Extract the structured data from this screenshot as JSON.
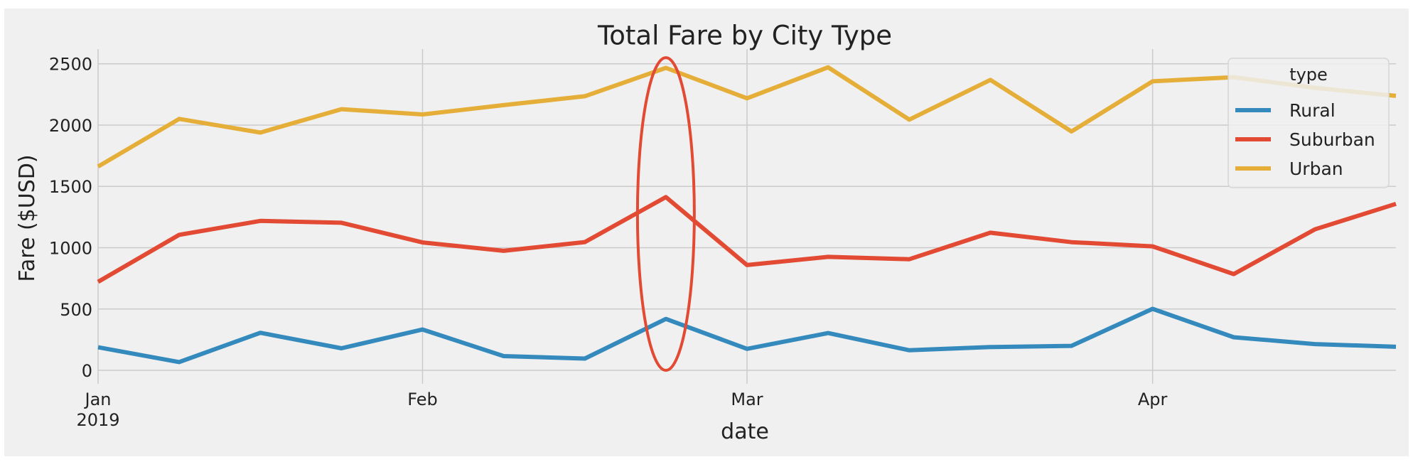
{
  "chart_data": {
    "type": "line",
    "title": "Total Fare by City Type",
    "xlabel": "date",
    "ylabel": "Fare ($USD)",
    "x": [
      "2019-01-06",
      "2019-01-13",
      "2019-01-20",
      "2019-01-27",
      "2019-02-03",
      "2019-02-10",
      "2019-02-17",
      "2019-02-24",
      "2019-03-03",
      "2019-03-10",
      "2019-03-17",
      "2019-03-24",
      "2019-03-31",
      "2019-04-07",
      "2019-04-14",
      "2019-04-21",
      "2019-04-28"
    ],
    "xlim": [
      "2019-01-06",
      "2019-04-28"
    ],
    "x_ticks": [
      {
        "date": "2019-01-06",
        "label": "Jan",
        "sublabel": "2019"
      },
      {
        "date": "2019-02-03",
        "label": "Feb",
        "sublabel": ""
      },
      {
        "date": "2019-03-03",
        "label": "Mar",
        "sublabel": ""
      },
      {
        "date": "2019-04-07",
        "label": "Apr",
        "sublabel": ""
      }
    ],
    "ylim": [
      -110,
      2620
    ],
    "y_ticks": [
      0,
      500,
      1000,
      1500,
      2000,
      2500
    ],
    "grid": true,
    "legend": {
      "title": "type",
      "placement": "top-right"
    },
    "series": [
      {
        "name": "Rural",
        "color": "#348ABD",
        "values": [
          187.92,
          67.65,
          306.0,
          179.69,
          333.08,
          115.8,
          95.82,
          419.06,
          175.14,
          303.94,
          163.39,
          189.76,
          199.42,
          501.24,
          269.79,
          214.14,
          191.85
        ]
      },
      {
        "name": "Suburban",
        "color": "#E24A33",
        "values": [
          721.6,
          1105.13,
          1218.2,
          1203.28,
          1042.79,
          974.34,
          1045.5,
          1412.74,
          858.46,
          925.27,
          906.2,
          1122.2,
          1045.06,
          1010.73,
          784.82,
          1149.27,
          1357.75
        ]
      },
      {
        "name": "Urban",
        "color": "#E5AE38",
        "values": [
          1661.68,
          2050.43,
          1939.02,
          2129.51,
          2086.94,
          2162.64,
          2235.07,
          2466.29,
          2218.2,
          2470.93,
          2044.42,
          2368.37,
          1947.91,
          2356.7,
          2390.72,
          2303.8,
          2238.29
        ]
      }
    ],
    "annotations": [
      {
        "type": "ellipse",
        "x": "2019-02-24",
        "y_range": [
          0,
          2550
        ],
        "color": "#E24A33"
      }
    ]
  }
}
